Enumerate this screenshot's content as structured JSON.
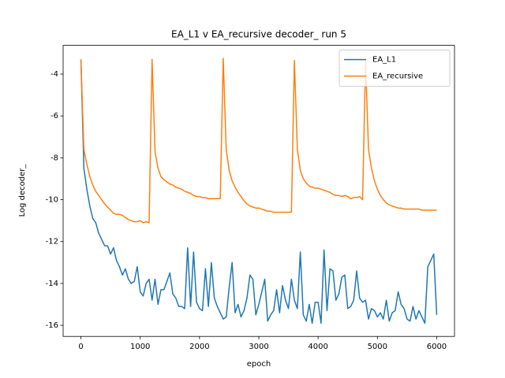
{
  "chart_data": {
    "type": "line",
    "title": "EA_L1 v EA_recursive decoder_ run 5",
    "xlabel": "epoch",
    "ylabel": "Log decoder_",
    "x": [
      0,
      50,
      100,
      150,
      200,
      250,
      300,
      350,
      400,
      450,
      500,
      550,
      600,
      650,
      700,
      750,
      800,
      850,
      900,
      950,
      1000,
      1050,
      1100,
      1150,
      1200,
      1250,
      1300,
      1350,
      1400,
      1450,
      1500,
      1550,
      1600,
      1650,
      1700,
      1750,
      1800,
      1850,
      1900,
      1950,
      2000,
      2050,
      2100,
      2150,
      2200,
      2250,
      2300,
      2350,
      2400,
      2450,
      2500,
      2550,
      2600,
      2650,
      2700,
      2750,
      2800,
      2850,
      2900,
      2950,
      3000,
      3050,
      3100,
      3150,
      3200,
      3250,
      3300,
      3350,
      3400,
      3450,
      3500,
      3550,
      3600,
      3650,
      3700,
      3750,
      3800,
      3850,
      3900,
      3950,
      4000,
      4050,
      4100,
      4150,
      4200,
      4250,
      4300,
      4350,
      4400,
      4450,
      4500,
      4550,
      4600,
      4650,
      4700,
      4750,
      4800,
      4850,
      4900,
      4950,
      5000,
      5050,
      5100,
      5150,
      5200,
      5250,
      5300,
      5350,
      5400,
      5450,
      5500,
      5550,
      5600,
      5650,
      5700,
      5750,
      5800,
      5850,
      5900,
      5950,
      6000
    ],
    "series": [
      {
        "name": "EA_L1",
        "color": "#1f77b4",
        "values": [
          -3.3,
          -8.5,
          -9.5,
          -10.3,
          -10.9,
          -11.1,
          -11.6,
          -11.9,
          -12.2,
          -12.2,
          -12.6,
          -12.3,
          -12.9,
          -13.2,
          -13.6,
          -13.3,
          -13.8,
          -14.0,
          -13.9,
          -13.2,
          -14.4,
          -14.6,
          -14.0,
          -13.8,
          -14.8,
          -13.8,
          -15.0,
          -14.3,
          -14.3,
          -13.9,
          -13.5,
          -14.5,
          -14.7,
          -15.1,
          -15.1,
          -15.2,
          -12.3,
          -15.1,
          -12.5,
          -14.9,
          -15.2,
          -15.3,
          -13.3,
          -15.1,
          -13.0,
          -14.7,
          -15.1,
          -15.4,
          -15.7,
          -15.6,
          -14.2,
          -13.0,
          -15.4,
          -15.0,
          -15.6,
          -15.3,
          -14.7,
          -13.6,
          -13.8,
          -15.5,
          -15.0,
          -14.4,
          -13.8,
          -15.8,
          -15.5,
          -15.3,
          -14.3,
          -15.4,
          -14.1,
          -14.8,
          -15.2,
          -13.8,
          -14.8,
          -15.2,
          -12.5,
          -15.5,
          -15.8,
          -15.0,
          -15.9,
          -14.9,
          -14.9,
          -15.9,
          -12.4,
          -15.3,
          -13.3,
          -13.4,
          -14.8,
          -14.5,
          -13.7,
          -13.6,
          -15.2,
          -15.1,
          -14.8,
          -13.4,
          -14.7,
          -14.9,
          -14.8,
          -15.7,
          -15.2,
          -15.3,
          -15.6,
          -15.4,
          -15.7,
          -14.8,
          -15.8,
          -15.4,
          -15.3,
          -14.4,
          -15.0,
          -15.2,
          -15.7,
          -15.8,
          -15.1,
          -15.7,
          -15.3,
          -15.6,
          -15.9,
          -13.2,
          -12.9,
          -12.6,
          -15.5
        ]
      },
      {
        "name": "EA_recursive",
        "color": "#ff7f0e",
        "values": [
          -3.3,
          -7.6,
          -8.3,
          -8.9,
          -9.3,
          -9.6,
          -9.8,
          -10.0,
          -10.2,
          -10.35,
          -10.5,
          -10.65,
          -10.7,
          -10.7,
          -10.75,
          -10.85,
          -10.95,
          -11.0,
          -11.05,
          -11.05,
          -11.0,
          -11.1,
          -11.05,
          -11.1,
          -3.3,
          -7.7,
          -8.5,
          -8.9,
          -9.05,
          -9.15,
          -9.25,
          -9.3,
          -9.4,
          -9.45,
          -9.5,
          -9.6,
          -9.65,
          -9.7,
          -9.8,
          -9.85,
          -9.85,
          -9.9,
          -9.9,
          -9.95,
          -9.95,
          -9.95,
          -9.95,
          -9.95,
          -3.25,
          -7.6,
          -8.6,
          -9.1,
          -9.4,
          -9.65,
          -9.85,
          -10.05,
          -10.2,
          -10.3,
          -10.35,
          -10.4,
          -10.4,
          -10.45,
          -10.5,
          -10.55,
          -10.55,
          -10.6,
          -10.6,
          -10.6,
          -10.6,
          -10.6,
          -10.6,
          -10.6,
          -3.35,
          -7.6,
          -8.6,
          -9.0,
          -9.2,
          -9.35,
          -9.4,
          -9.45,
          -9.45,
          -9.5,
          -9.55,
          -9.6,
          -9.65,
          -9.75,
          -9.8,
          -9.8,
          -9.85,
          -9.8,
          -9.85,
          -9.95,
          -9.9,
          -9.9,
          -9.85,
          -10.0,
          -3.4,
          -7.6,
          -8.5,
          -9.1,
          -9.5,
          -9.8,
          -10.0,
          -10.15,
          -10.25,
          -10.3,
          -10.35,
          -10.4,
          -10.4,
          -10.45,
          -10.45,
          -10.45,
          -10.45,
          -10.45,
          -10.45,
          -10.5,
          -10.5,
          -10.5,
          -10.5,
          -10.5,
          -10.5
        ]
      }
    ],
    "xlim": [
      -300,
      6300
    ],
    "xticks": [
      0,
      1000,
      2000,
      3000,
      4000,
      5000,
      6000
    ],
    "ylim": [
      -16.53,
      -2.63
    ],
    "yticks": [
      -16,
      -14,
      -12,
      -10,
      -8,
      -6,
      -4
    ],
    "legend": "upper right"
  }
}
